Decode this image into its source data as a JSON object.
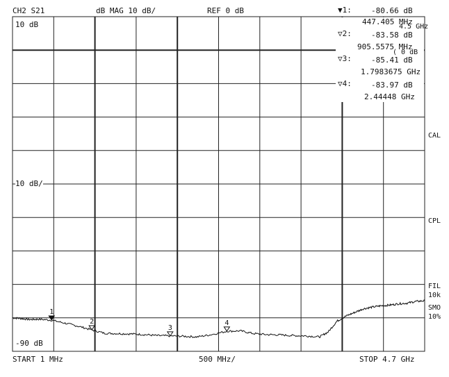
{
  "header": {
    "channel": "CH2 S21",
    "format": "dB  MAG 10 dB/",
    "reference": "REF 0 dB"
  },
  "markers": [
    {
      "symbol": "▼",
      "label": "1:",
      "value": "-80.66 dB",
      "freq": "447.405 MHz"
    },
    {
      "symbol": "▽",
      "label": "2:",
      "value": "-83.58 dB",
      "freq": "905.5575 MHz"
    },
    {
      "symbol": "▽",
      "label": "3:",
      "value": "-85.41 dB",
      "freq": "1.7983675 GHz"
    },
    {
      "symbol": "▽",
      "label": "4:",
      "value": "-83.97 dB",
      "freq": "2.44448 GHz"
    }
  ],
  "overlay": {
    "stop_overlap": "4.5 GHz",
    "ref_overlap": "( 0 dB"
  },
  "axis_labels": {
    "top": "10 dB",
    "scale": "10 dB/",
    "bottom": "-90 dB"
  },
  "footer": {
    "start": "START  1 MHz",
    "span": "500 MHz/",
    "stop": "STOP 4.7 GHz"
  },
  "side": {
    "cal": "CAL",
    "cpl": "CPL",
    "fil": "FIL",
    "fil_val": "10k",
    "smo": "SMO",
    "smo_val": "10%"
  },
  "chart_data": {
    "type": "line",
    "xlabel": "",
    "ylabel": "",
    "x_unit": "GHz",
    "y_unit": "dB",
    "xlim": [
      0.001,
      4.7
    ],
    "ylim": [
      -90,
      10
    ],
    "grid": true,
    "series": [
      {
        "x": [
          0.001,
          0.1,
          0.2,
          0.3,
          0.447,
          0.6,
          0.75,
          0.9056,
          1.05,
          1.2,
          1.35,
          1.5,
          1.65,
          1.7984,
          1.95,
          2.1,
          2.25,
          2.4445,
          2.6,
          2.75,
          2.9,
          3.05,
          3.2,
          3.35,
          3.5,
          3.6,
          3.7,
          3.8,
          3.9,
          4.0,
          4.1,
          4.2,
          4.3,
          4.4,
          4.5,
          4.6,
          4.7
        ],
        "values": [
          -80.0,
          -80.2,
          -80.5,
          -80.4,
          -80.7,
          -81.6,
          -82.5,
          -83.6,
          -84.6,
          -84.7,
          -84.8,
          -85.0,
          -85.3,
          -85.4,
          -85.5,
          -85.7,
          -85.1,
          -84.0,
          -83.9,
          -84.7,
          -85.0,
          -85.1,
          -85.3,
          -85.4,
          -85.7,
          -84.2,
          -81.0,
          -79.5,
          -78.4,
          -77.3,
          -76.8,
          -76.4,
          -76.2,
          -75.8,
          -75.6,
          -75.1,
          -74.9
        ]
      }
    ],
    "marker_points": [
      {
        "label": "1",
        "x": 0.447,
        "y": -80.66
      },
      {
        "label": "2",
        "x": 0.9056,
        "y": -83.58
      },
      {
        "label": "3",
        "x": 1.7984,
        "y": -85.41
      },
      {
        "label": "4",
        "x": 2.4445,
        "y": -83.97
      }
    ]
  }
}
